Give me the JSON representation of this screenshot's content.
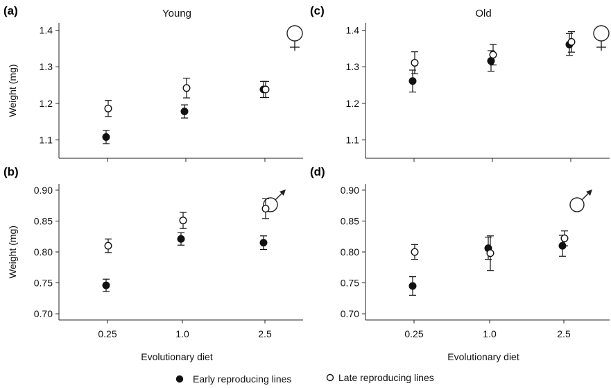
{
  "legend": {
    "early_label": "Early reproducing lines",
    "late_label": "Late reproducing lines"
  },
  "chart_data": [
    {
      "type": "scatter",
      "panel": "(a)",
      "title": "Young",
      "sex_symbol": "female",
      "xlabel": "",
      "ylabel": "Weight (mg)",
      "categories": [
        "0.25",
        "1.0",
        "2.5"
      ],
      "show_x_tick_labels": false,
      "ylim": [
        1.05,
        1.42
      ],
      "yticks": [
        "1.1",
        "1.2",
        "1.3",
        "1.4"
      ],
      "series": [
        {
          "name": "Early reproducing lines",
          "marker": "filled",
          "values": [
            1.108,
            1.178,
            1.238
          ],
          "errors": [
            0.018,
            0.018,
            0.022
          ]
        },
        {
          "name": "Late reproducing lines",
          "marker": "open",
          "values": [
            1.186,
            1.242,
            1.238
          ],
          "errors": [
            0.022,
            0.027,
            0.022
          ]
        }
      ]
    },
    {
      "type": "scatter",
      "panel": "(b)",
      "title": "",
      "sex_symbol": "male",
      "xlabel": "Evolutionary diet",
      "ylabel": "Weight (mg)",
      "categories": [
        "0.25",
        "1.0",
        "2.5"
      ],
      "show_x_tick_labels": true,
      "ylim": [
        0.69,
        0.91
      ],
      "yticks": [
        "0.70",
        "0.75",
        "0.80",
        "0.85",
        "0.90"
      ],
      "series": [
        {
          "name": "Early reproducing lines",
          "marker": "filled",
          "values": [
            0.746,
            0.821,
            0.815
          ],
          "errors": [
            0.01,
            0.01,
            0.011
          ]
        },
        {
          "name": "Late reproducing lines",
          "marker": "open",
          "values": [
            0.81,
            0.851,
            0.87
          ],
          "errors": [
            0.011,
            0.013,
            0.016
          ]
        }
      ]
    },
    {
      "type": "scatter",
      "panel": "(c)",
      "title": "Old",
      "sex_symbol": "female",
      "xlabel": "",
      "ylabel": "",
      "categories": [
        "0.25",
        "1.0",
        "2.5"
      ],
      "show_x_tick_labels": false,
      "ylim": [
        1.05,
        1.42
      ],
      "yticks": [
        "1.1",
        "1.2",
        "1.3",
        "1.4"
      ],
      "series": [
        {
          "name": "Early reproducing lines",
          "marker": "filled",
          "values": [
            1.261,
            1.316,
            1.361
          ],
          "errors": [
            0.03,
            0.028,
            0.03
          ]
        },
        {
          "name": "Late reproducing lines",
          "marker": "open",
          "values": [
            1.311,
            1.333,
            1.368
          ],
          "errors": [
            0.03,
            0.028,
            0.028
          ]
        }
      ]
    },
    {
      "type": "scatter",
      "panel": "(d)",
      "title": "",
      "sex_symbol": "male",
      "xlabel": "Evolutionary diet",
      "ylabel": "",
      "categories": [
        "0.25",
        "1.0",
        "2.5"
      ],
      "show_x_tick_labels": true,
      "ylim": [
        0.69,
        0.91
      ],
      "yticks": [
        "0.70",
        "0.75",
        "0.80",
        "0.85",
        "0.90"
      ],
      "series": [
        {
          "name": "Early reproducing lines",
          "marker": "filled",
          "values": [
            0.745,
            0.806,
            0.81
          ],
          "errors": [
            0.015,
            0.018,
            0.017
          ]
        },
        {
          "name": "Late reproducing lines",
          "marker": "open",
          "values": [
            0.8,
            0.798,
            0.822
          ],
          "errors": [
            0.012,
            0.028,
            0.012
          ]
        }
      ]
    }
  ]
}
